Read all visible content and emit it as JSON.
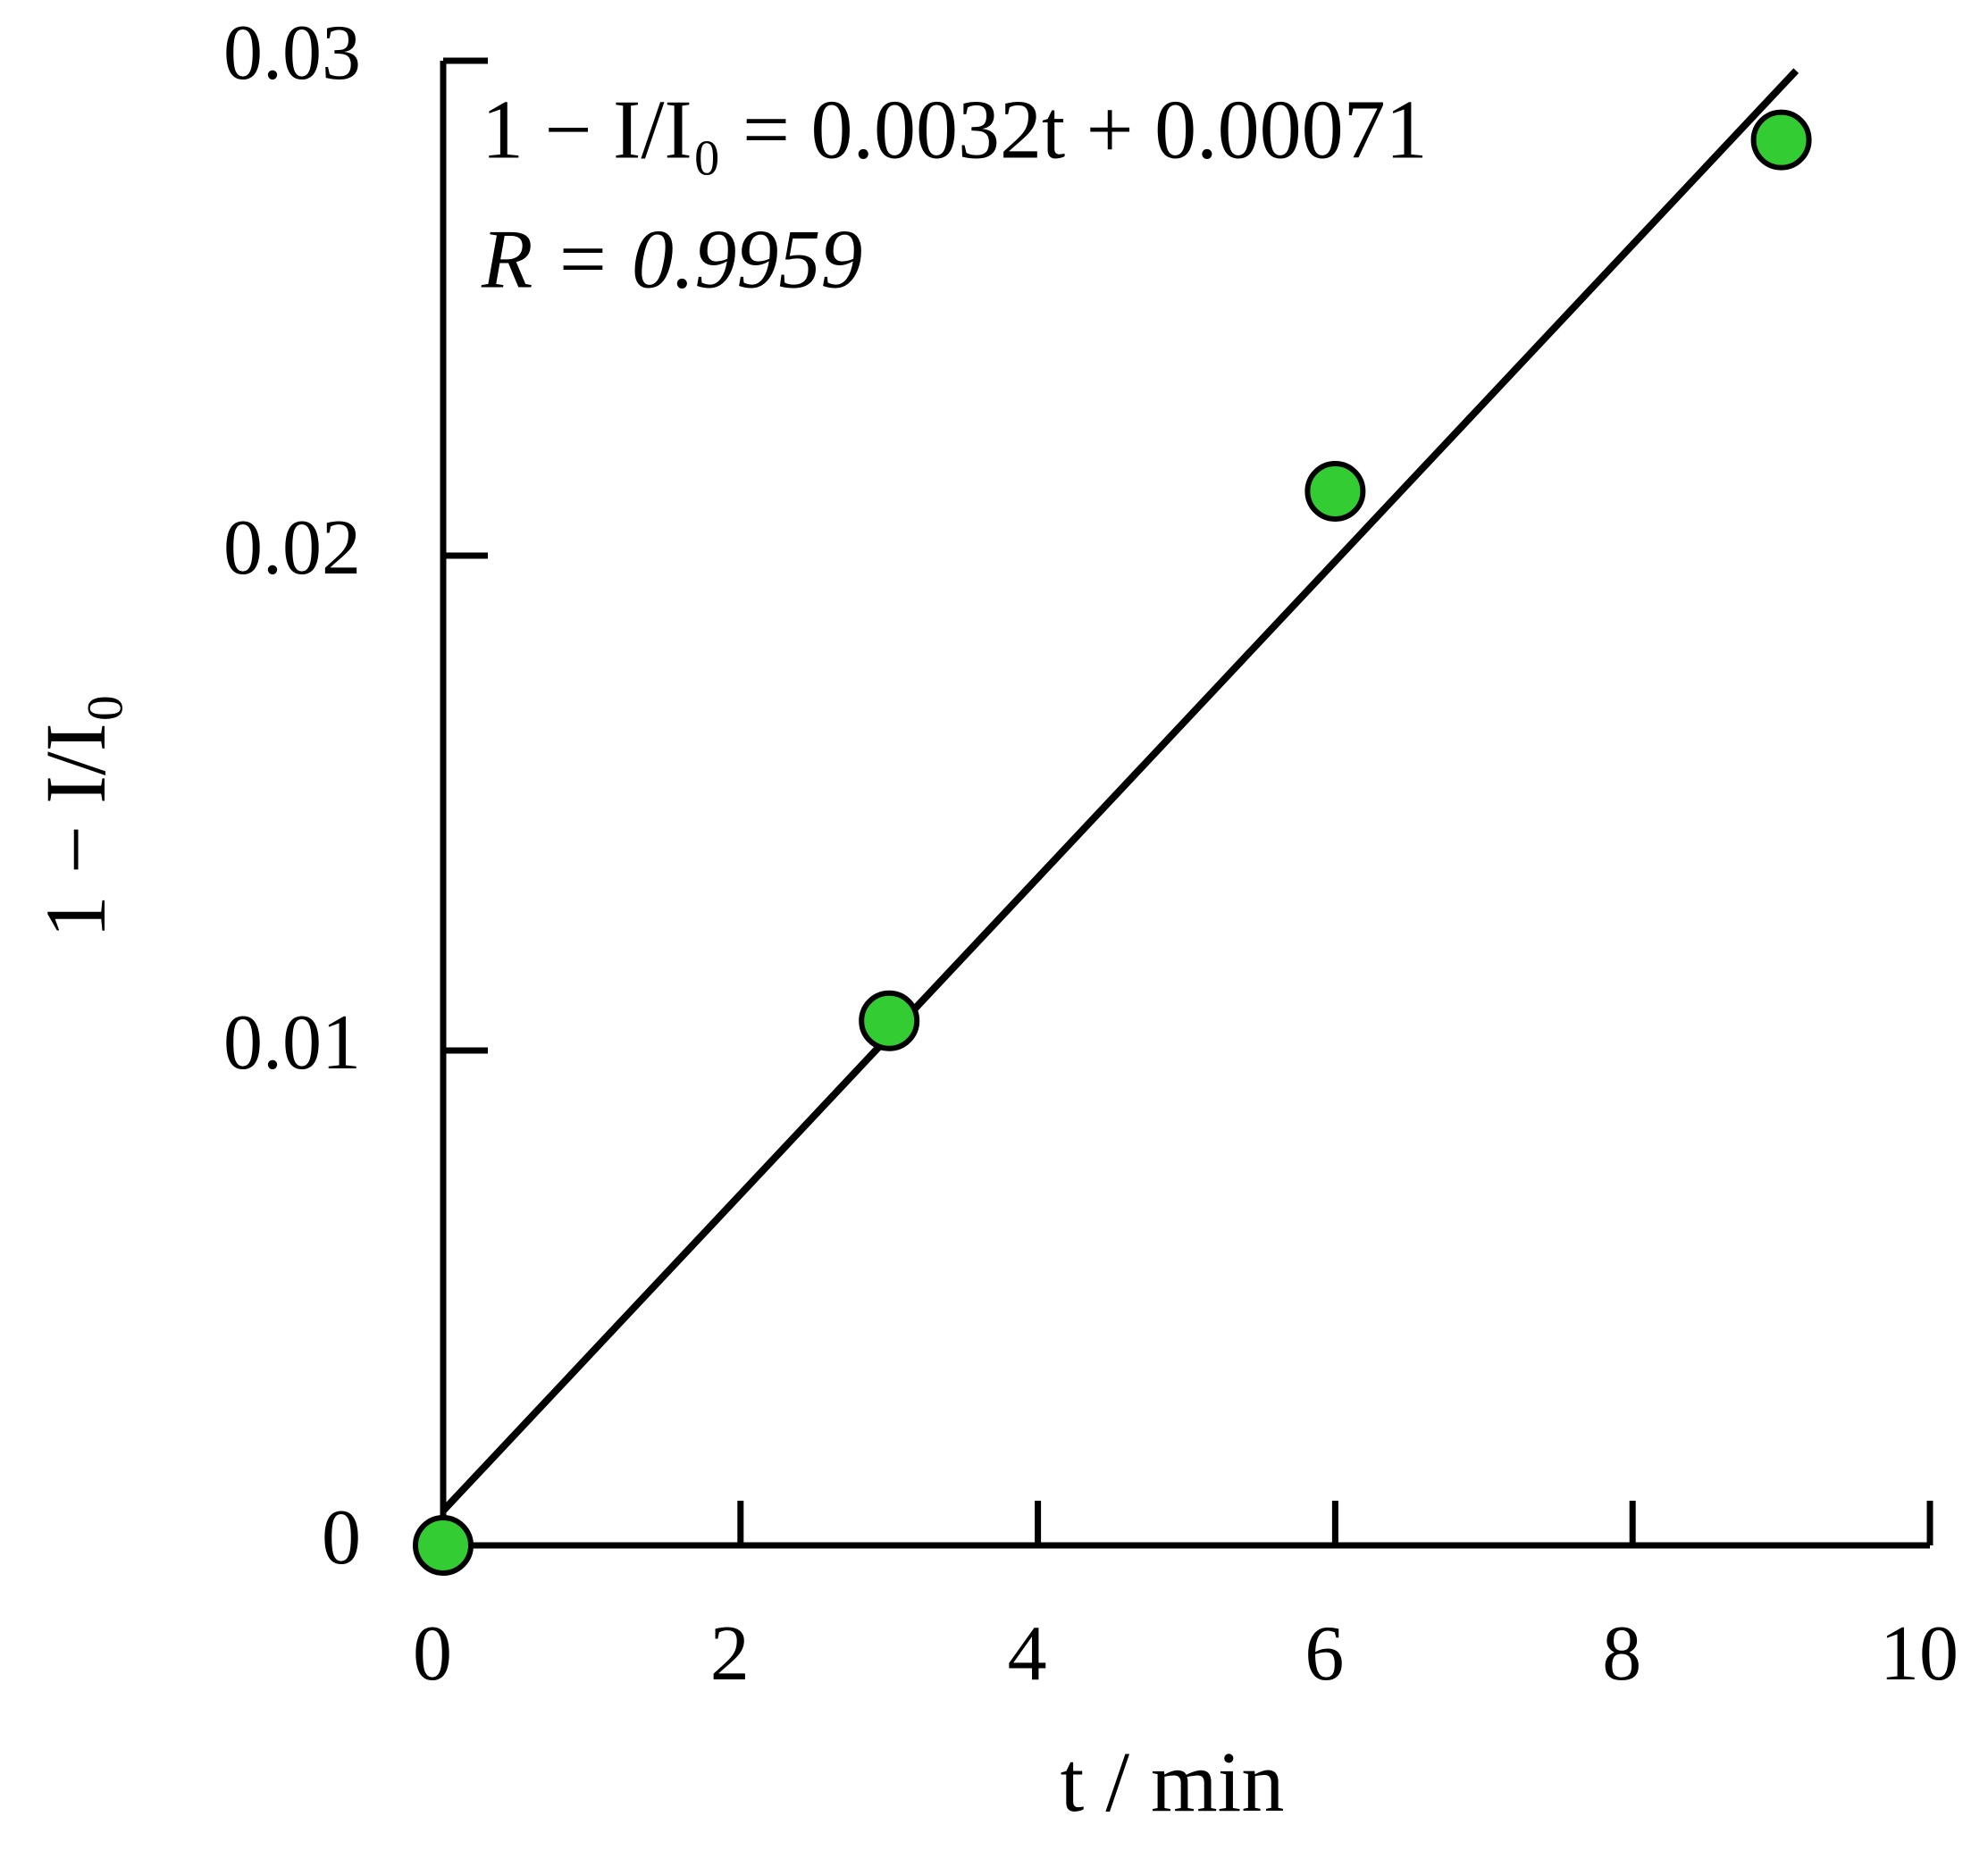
{
  "chart_data": {
    "type": "scatter",
    "annotations": [
      "1 − I/I₀ = 0.0032t + 0.00071",
      "R = 0.9959"
    ],
    "x_label": "t / min",
    "y_label": "1 − I/I₀",
    "xlim": [
      0,
      10
    ],
    "xticks": [
      0,
      2,
      4,
      6,
      8,
      10
    ],
    "ylim": [
      0,
      0.03
    ],
    "yticks": [
      0,
      0.01,
      0.02,
      0.03
    ],
    "series": [
      {
        "color": "#33cc33",
        "x": [
          0,
          3,
          6,
          9
        ],
        "values": [
          0,
          0.0106,
          0.0213,
          0.0284
        ]
      }
    ],
    "fit_line": {
      "color": "#000000",
      "x": [
        0,
        9.1
      ],
      "values": [
        0.0007,
        0.0298
      ]
    }
  }
}
